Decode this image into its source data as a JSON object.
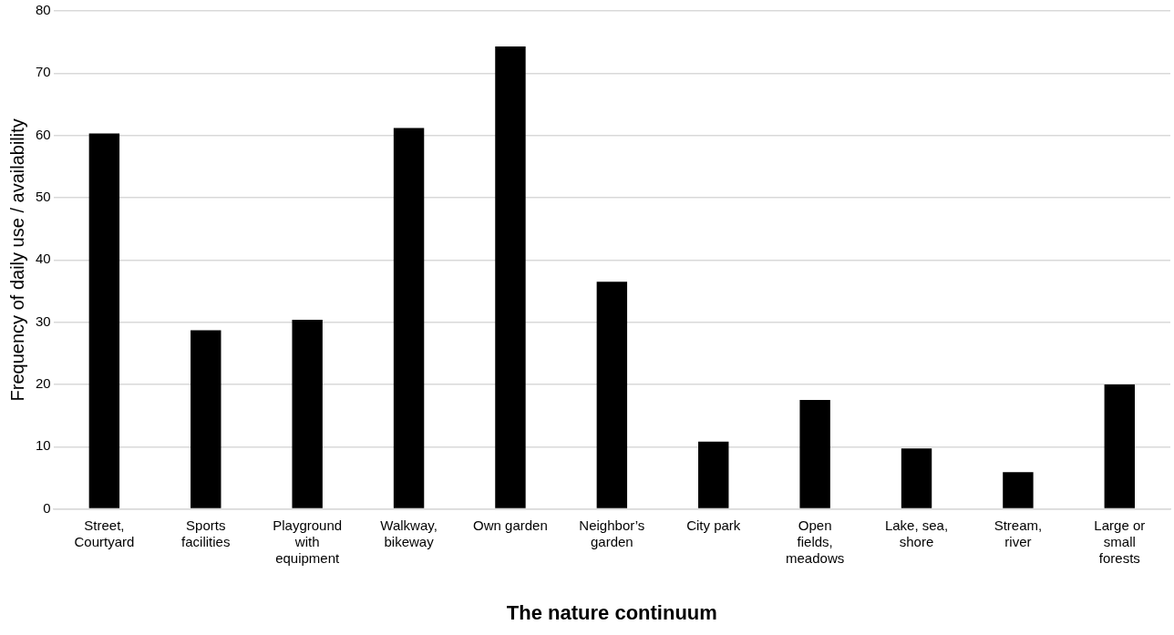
{
  "chart_data": {
    "type": "bar",
    "xlabel": "The nature continuum",
    "ylabel": "Frequency of daily use / availability",
    "categories": [
      "Street, Courtyard",
      "Sports facilities",
      "Playground with equipment",
      "Walkway, bikeway",
      "Own garden",
      "Neighbor’s garden",
      "City park",
      "Open fields, meadows",
      "Lake, sea, shore",
      "Stream, river",
      "Large or small forests"
    ],
    "values": [
      60.3,
      28.7,
      30.4,
      61.2,
      74.3,
      36.5,
      10.8,
      17.5,
      9.7,
      5.9,
      20.0
    ],
    "color": "#000000",
    "ylim": [
      0,
      80
    ],
    "yticks": [
      0,
      10,
      20,
      30,
      40,
      50,
      60,
      70,
      80
    ],
    "grid": "y"
  }
}
